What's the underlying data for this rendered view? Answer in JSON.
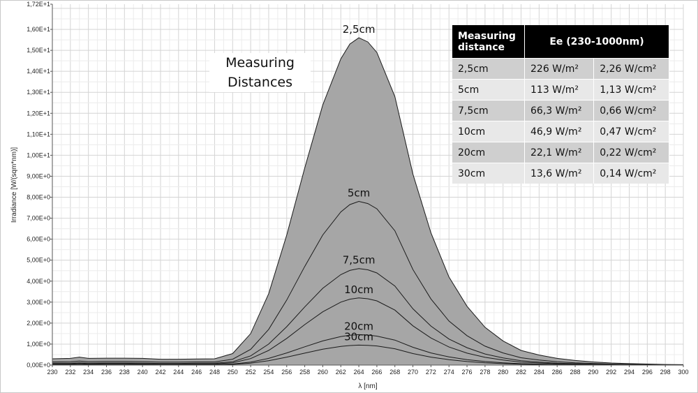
{
  "chart_data": {
    "type": "area",
    "xlabel": "λ [nm]",
    "ylabel": "Irradiance [W/(sqm*nm)]",
    "xlim": [
      230,
      300
    ],
    "ylim": [
      0,
      17.2
    ],
    "x_ticks": [
      230,
      232,
      234,
      236,
      238,
      240,
      242,
      244,
      246,
      248,
      250,
      252,
      254,
      256,
      258,
      260,
      262,
      264,
      266,
      268,
      270,
      272,
      274,
      276,
      278,
      280,
      282,
      284,
      286,
      288,
      290,
      292,
      294,
      296,
      298,
      300
    ],
    "y_ticks": [
      {
        "v": 0,
        "label": "0,00E+0"
      },
      {
        "v": 1,
        "label": "1,00E+0"
      },
      {
        "v": 2,
        "label": "2,00E+0"
      },
      {
        "v": 3,
        "label": "3,00E+0"
      },
      {
        "v": 4,
        "label": "4,00E+0"
      },
      {
        "v": 5,
        "label": "5,00E+0"
      },
      {
        "v": 6,
        "label": "6,00E+0"
      },
      {
        "v": 7,
        "label": "7,00E+0"
      },
      {
        "v": 8,
        "label": "8,00E+0"
      },
      {
        "v": 9,
        "label": "9,00E+0"
      },
      {
        "v": 10,
        "label": "1,00E+1"
      },
      {
        "v": 11,
        "label": "1,10E+1"
      },
      {
        "v": 12,
        "label": "1,20E+1"
      },
      {
        "v": 13,
        "label": "1,30E+1"
      },
      {
        "v": 14,
        "label": "1,40E+1"
      },
      {
        "v": 15,
        "label": "1,50E+1"
      },
      {
        "v": 16,
        "label": "1,60E+1"
      },
      {
        "v": 17.2,
        "label": "1,72E+1"
      }
    ],
    "grid": true,
    "x": [
      230,
      232,
      233,
      234,
      236,
      238,
      240,
      242,
      244,
      246,
      248,
      250,
      252,
      254,
      256,
      258,
      260,
      262,
      263,
      264,
      265,
      266,
      268,
      270,
      272,
      274,
      276,
      278,
      280,
      282,
      284,
      286,
      288,
      290,
      292,
      294,
      296,
      298,
      300
    ],
    "series": [
      {
        "name": "2,5cm",
        "peak": 15.6,
        "values": [
          0.3,
          0.32,
          0.38,
          0.32,
          0.33,
          0.33,
          0.32,
          0.28,
          0.28,
          0.29,
          0.3,
          0.55,
          1.5,
          3.4,
          6.2,
          9.4,
          12.4,
          14.6,
          15.3,
          15.6,
          15.4,
          14.9,
          12.8,
          9.1,
          6.3,
          4.2,
          2.8,
          1.8,
          1.15,
          0.7,
          0.48,
          0.32,
          0.22,
          0.15,
          0.1,
          0.07,
          0.05,
          0.03,
          0.02
        ]
      },
      {
        "name": "5cm",
        "peak": 7.8,
        "values": [
          0.15,
          0.16,
          0.19,
          0.16,
          0.17,
          0.17,
          0.16,
          0.14,
          0.14,
          0.15,
          0.15,
          0.28,
          0.75,
          1.7,
          3.1,
          4.7,
          6.2,
          7.3,
          7.65,
          7.8,
          7.7,
          7.45,
          6.4,
          4.55,
          3.15,
          2.1,
          1.4,
          0.9,
          0.58,
          0.35,
          0.24,
          0.16,
          0.11,
          0.08,
          0.05,
          0.035,
          0.025,
          0.015,
          0.01
        ]
      },
      {
        "name": "7,5cm",
        "peak": 4.6,
        "values": [
          0.09,
          0.09,
          0.11,
          0.09,
          0.1,
          0.1,
          0.09,
          0.08,
          0.08,
          0.09,
          0.09,
          0.16,
          0.44,
          1.0,
          1.83,
          2.77,
          3.66,
          4.31,
          4.51,
          4.6,
          4.54,
          4.39,
          3.77,
          2.68,
          1.86,
          1.24,
          0.83,
          0.53,
          0.34,
          0.21,
          0.14,
          0.09,
          0.065,
          0.045,
          0.03,
          0.02,
          0.015,
          0.01,
          0.006
        ]
      },
      {
        "name": "10cm",
        "peak": 3.2,
        "values": [
          0.06,
          0.06,
          0.08,
          0.06,
          0.07,
          0.07,
          0.06,
          0.06,
          0.06,
          0.06,
          0.06,
          0.11,
          0.31,
          0.7,
          1.27,
          1.93,
          2.54,
          3.0,
          3.14,
          3.2,
          3.16,
          3.06,
          2.62,
          1.87,
          1.29,
          0.86,
          0.57,
          0.37,
          0.24,
          0.14,
          0.1,
          0.066,
          0.045,
          0.031,
          0.02,
          0.014,
          0.01,
          0.006,
          0.004
        ]
      },
      {
        "name": "20cm",
        "peak": 1.45,
        "values": [
          0.03,
          0.03,
          0.035,
          0.03,
          0.03,
          0.03,
          0.03,
          0.026,
          0.026,
          0.027,
          0.028,
          0.05,
          0.14,
          0.32,
          0.58,
          0.87,
          1.15,
          1.36,
          1.42,
          1.45,
          1.43,
          1.38,
          1.19,
          0.85,
          0.58,
          0.39,
          0.26,
          0.17,
          0.11,
          0.065,
          0.045,
          0.03,
          0.02,
          0.014,
          0.009,
          0.006,
          0.005,
          0.003,
          0.002
        ]
      },
      {
        "name": "30cm",
        "peak": 0.95,
        "values": [
          0.02,
          0.02,
          0.023,
          0.02,
          0.02,
          0.02,
          0.02,
          0.017,
          0.017,
          0.018,
          0.018,
          0.033,
          0.09,
          0.21,
          0.38,
          0.57,
          0.76,
          0.89,
          0.93,
          0.95,
          0.94,
          0.91,
          0.78,
          0.55,
          0.38,
          0.26,
          0.17,
          0.11,
          0.07,
          0.043,
          0.03,
          0.02,
          0.013,
          0.009,
          0.006,
          0.004,
          0.003,
          0.002,
          0.001
        ]
      }
    ],
    "annotations": [
      "Measuring",
      "Distances"
    ],
    "table": {
      "header_col1": "Measuring distance",
      "header_col2": "Ee  (230-1000nm)",
      "rows": [
        [
          "2,5cm",
          "226 W/m²",
          "2,26 W/cm²"
        ],
        [
          "5cm",
          "113 W/m²",
          "1,13 W/cm²"
        ],
        [
          "7,5cm",
          "66,3 W/m²",
          "0,66 W/cm²"
        ],
        [
          "10cm",
          "46,9 W/m²",
          "0,47 W/cm²"
        ],
        [
          "20cm",
          "22,1 W/m²",
          "0,22 W/cm²"
        ],
        [
          "30cm",
          "13,6 W/m²",
          "0,14 W/cm²"
        ]
      ]
    },
    "colors": {
      "fill": "#a6a6a6",
      "line": "#1a1a1a",
      "grid": "#d9d9d9",
      "plot_bg": "#ffffff"
    }
  }
}
